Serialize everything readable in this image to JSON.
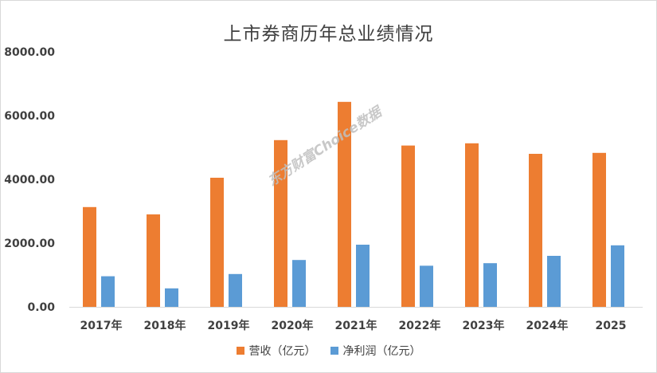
{
  "chart_data": {
    "type": "bar",
    "title": "上市券商历年总业绩情况",
    "categories": [
      "2017年",
      "2018年",
      "2019年",
      "2020年",
      "2021年",
      "2022年",
      "2023年",
      "2024年",
      "2025"
    ],
    "series": [
      {
        "name": "营收（亿元）",
        "color": "#ED7D31",
        "values": [
          3130,
          2900,
          4050,
          5230,
          6430,
          5060,
          5130,
          4800,
          4830
        ]
      },
      {
        "name": "净利润（亿元）",
        "color": "#5B9BD5",
        "values": [
          960,
          580,
          1030,
          1470,
          1950,
          1290,
          1370,
          1600,
          1930
        ]
      }
    ],
    "ylim": [
      0,
      8000
    ],
    "yticks": [
      "0.00",
      "2000.00",
      "4000.00",
      "6000.00",
      "8000.00"
    ],
    "grid": false,
    "legend_position": "bottom"
  },
  "watermark": "东方财富Choice数据"
}
